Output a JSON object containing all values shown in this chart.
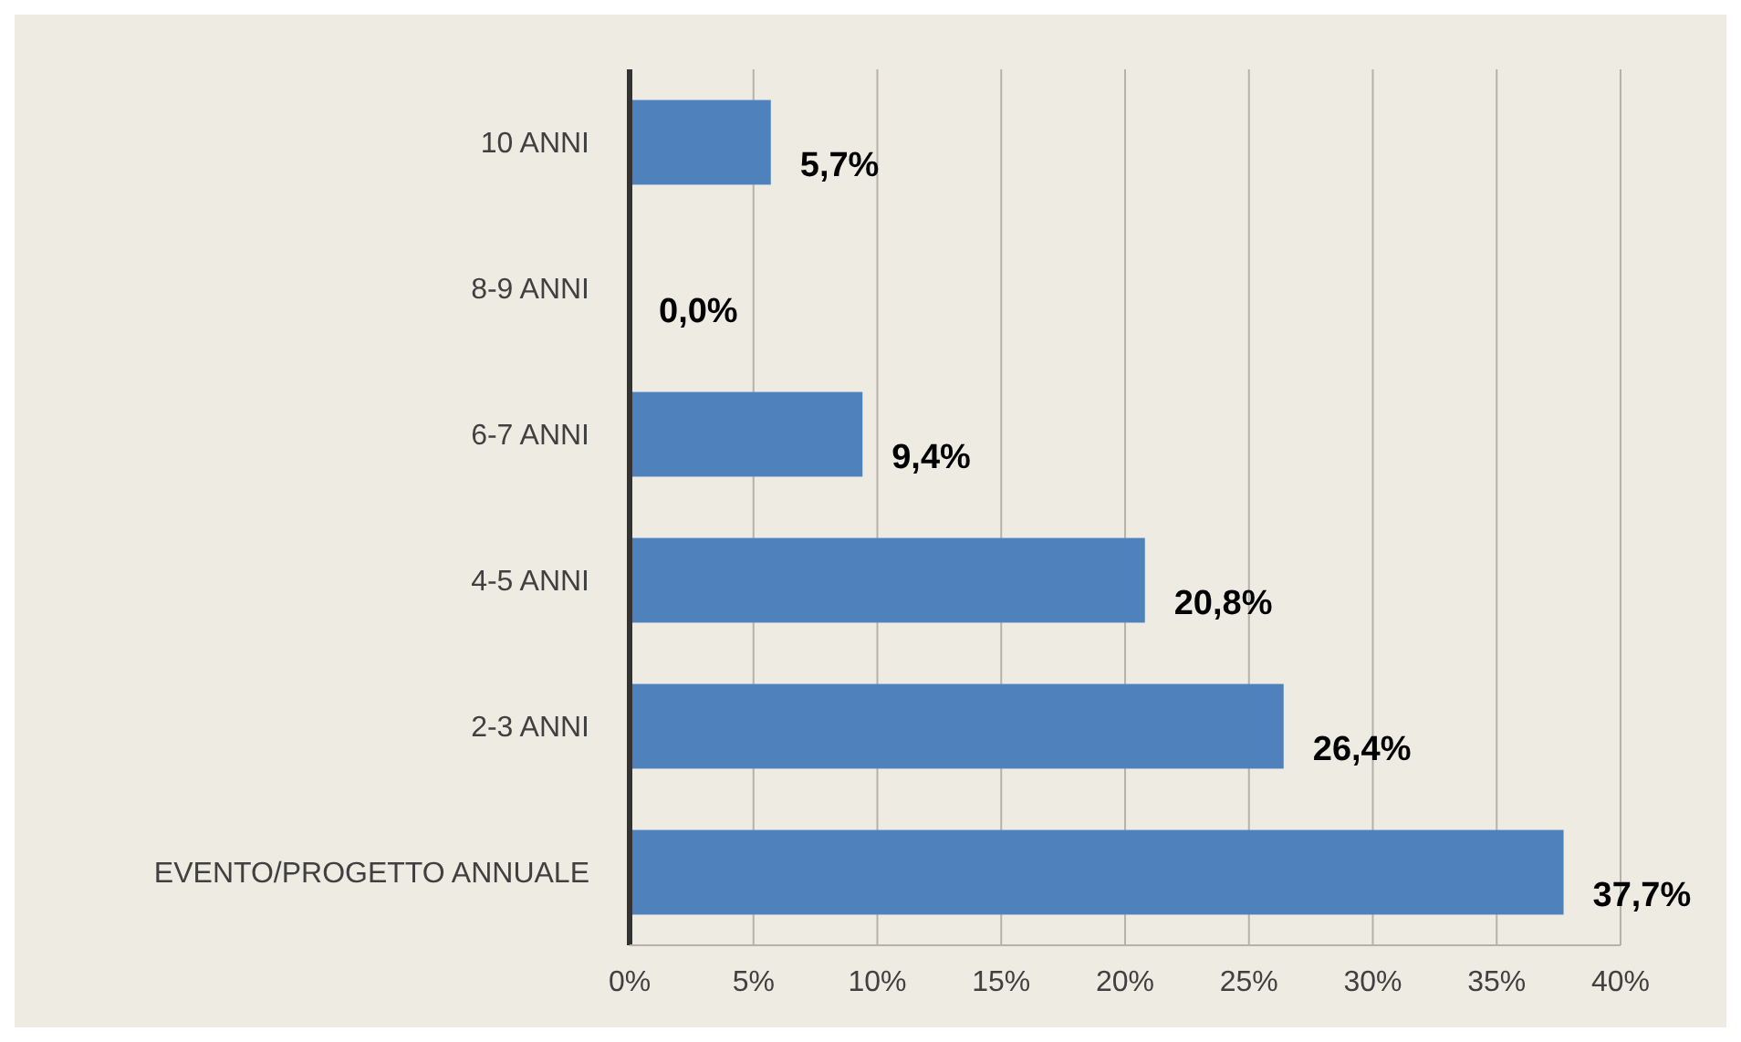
{
  "chart_data": {
    "type": "bar",
    "orientation": "horizontal",
    "categories": [
      "10 ANNI",
      "8-9 ANNI",
      "6-7 ANNI",
      "4-5 ANNI",
      "2-3 ANNI",
      "EVENTO/PROGETTO ANNUALE"
    ],
    "values": [
      5.7,
      0,
      9.4,
      20.8,
      26.4,
      37.7
    ],
    "value_labels": [
      "5,7%",
      "0,0%",
      "9,4%",
      "20,8%",
      "26,4%",
      "37,7%"
    ],
    "color": "#4f81bd",
    "xlim": [
      0,
      40
    ],
    "xticks": [
      {
        "value": 0,
        "label": "0%"
      },
      {
        "value": 5,
        "label": "5%"
      },
      {
        "value": 10,
        "label": "10%"
      },
      {
        "value": 15,
        "label": "15%"
      },
      {
        "value": 20,
        "label": "20%"
      },
      {
        "value": 25,
        "label": "25%"
      },
      {
        "value": 30,
        "label": "30%"
      },
      {
        "value": 35,
        "label": "35%"
      },
      {
        "value": 40,
        "label": "40%"
      }
    ],
    "grid": "x"
  }
}
